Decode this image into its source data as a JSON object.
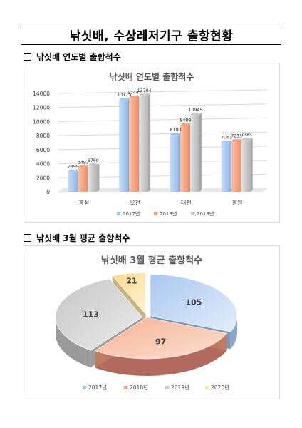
{
  "page": {
    "title": "낚싯배, 수상레저기구 출항현황",
    "section1_label": "낚싯배 연도별 출항척수",
    "section2_label": "낚싯배 3월 평균 출항척수"
  },
  "colors": {
    "2017": "#9dc3f0",
    "2018": "#f4a07c",
    "2019": "#c8c8c8",
    "2020": "#fde5a6"
  },
  "chart_data": [
    {
      "type": "bar",
      "title": "낚싯배 연도별 출항척수",
      "categories": [
        "홍성",
        "오천",
        "대천",
        "홍원"
      ],
      "series": [
        {
          "name": "2017년",
          "values": [
            2899,
            13115,
            8100,
            7061
          ]
        },
        {
          "name": "2018년",
          "values": [
            3492,
            13447,
            9489,
            7233
          ]
        },
        {
          "name": "2019년",
          "values": [
            3769,
            13704,
            10945,
            7385
          ]
        }
      ],
      "ylim": [
        0,
        14000
      ],
      "yticks": [
        0,
        2000,
        4000,
        6000,
        8000,
        10000,
        12000,
        14000
      ],
      "grid": true,
      "legend": "bottom"
    },
    {
      "type": "pie",
      "title": "낚싯배 3월 평균 출항척수",
      "labels": [
        "2017년",
        "2018년",
        "2019년",
        "2020년"
      ],
      "values": [
        105,
        97,
        113,
        21
      ],
      "legend": "bottom"
    }
  ]
}
